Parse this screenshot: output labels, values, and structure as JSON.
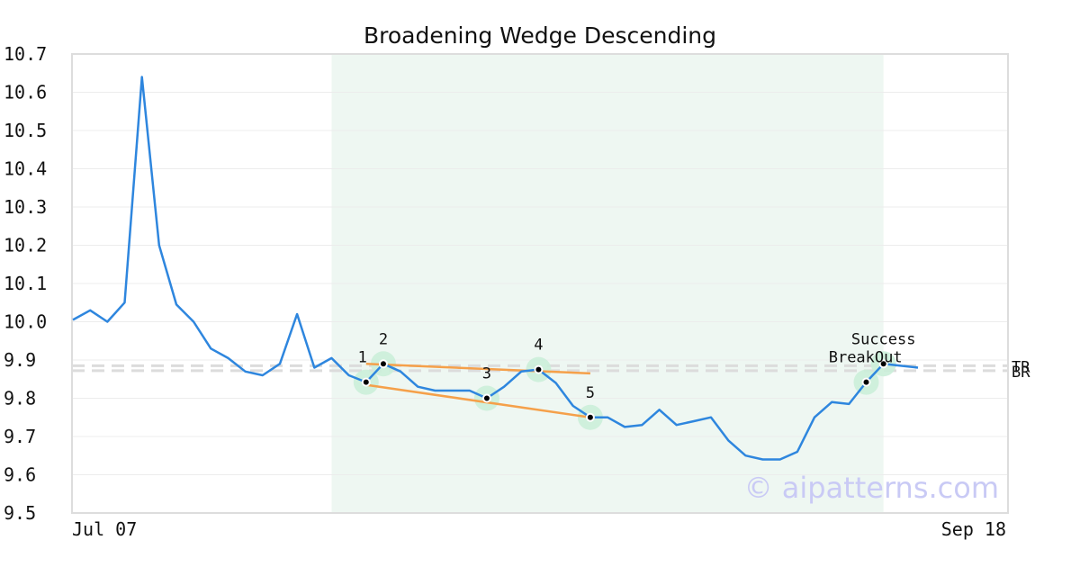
{
  "chart_data": {
    "type": "line",
    "title": "Broadening Wedge Descending",
    "x_tick_labels": [
      "Jul 07",
      "Sep 18"
    ],
    "ylim": [
      9.5,
      10.7
    ],
    "y_ticks": [
      9.5,
      9.6,
      9.7,
      9.8,
      9.9,
      10.0,
      10.1,
      10.2,
      10.3,
      10.4,
      10.5,
      10.6,
      10.7
    ],
    "grid": true,
    "series": [
      {
        "color": "#2e86de",
        "values": [
          10.005,
          10.03,
          10.0,
          10.05,
          10.64,
          10.2,
          10.045,
          10.0,
          9.93,
          9.905,
          9.87,
          9.86,
          9.89,
          10.02,
          9.88,
          9.905,
          9.86,
          9.842,
          9.89,
          9.87,
          9.83,
          9.82,
          9.82,
          9.82,
          9.8,
          9.83,
          9.87,
          9.875,
          9.84,
          9.78,
          9.75,
          9.75,
          9.725,
          9.73,
          9.77,
          9.73,
          9.74,
          9.75,
          9.69,
          9.65,
          9.64,
          9.64,
          9.66,
          9.75,
          9.79,
          9.785,
          9.842,
          9.89,
          9.885,
          9.88
        ]
      }
    ],
    "pattern_region": {
      "start_index": 15,
      "end_index": 47,
      "color": "#eef7f2"
    },
    "pattern_points": [
      {
        "label": "1",
        "index": 17,
        "value": 9.842
      },
      {
        "label": "2",
        "index": 18,
        "value": 9.89
      },
      {
        "label": "3",
        "index": 24,
        "value": 9.8
      },
      {
        "label": "4",
        "index": 27,
        "value": 9.875
      },
      {
        "label": "5",
        "index": 30,
        "value": 9.75
      }
    ],
    "breakout_points": [
      {
        "index": 46,
        "value": 9.842
      },
      {
        "index": 47,
        "value": 9.89
      }
    ],
    "trend_lines": [
      {
        "name": "top",
        "start_index": 17,
        "start_value": 9.89,
        "end_index": 30,
        "end_value": 9.865,
        "color": "#f5a04a"
      },
      {
        "name": "bottom",
        "start_index": 17,
        "start_value": 9.835,
        "end_index": 30,
        "end_value": 9.75,
        "color": "#f5a04a"
      }
    ],
    "reference_lines": [
      {
        "label": "TR",
        "value": 9.885
      },
      {
        "label": "BR",
        "value": 9.872
      }
    ],
    "annotations": {
      "success": "Success",
      "breakout": "BreakOut"
    },
    "watermark": "© aipatterns.com"
  }
}
